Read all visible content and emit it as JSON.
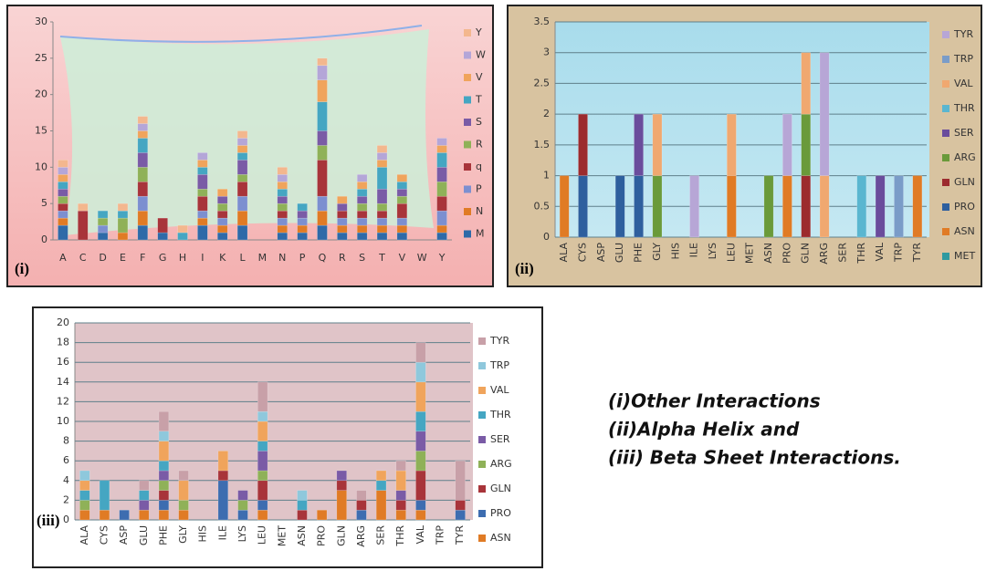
{
  "chart_data": [
    {
      "type": "bar",
      "stacked": true,
      "panel_label": "(i)",
      "legend": "right",
      "categories": [
        "A",
        "C",
        "D",
        "E",
        "F",
        "G",
        "H",
        "I",
        "K",
        "L",
        "M",
        "N",
        "P",
        "Q",
        "R",
        "S",
        "T",
        "V",
        "W",
        "Y"
      ],
      "ylim": [
        0,
        30
      ],
      "yticks": [
        0,
        5,
        10,
        15,
        20,
        25,
        30
      ],
      "grid": false,
      "series": [
        {
          "name": "M",
          "color": "#2e6aa8",
          "values": [
            2,
            0,
            1,
            0,
            2,
            1,
            0,
            2,
            1,
            2,
            0,
            1,
            1,
            2,
            1,
            1,
            1,
            1,
            0,
            1
          ]
        },
        {
          "name": "N",
          "color": "#e07b25",
          "values": [
            1,
            0,
            0,
            1,
            2,
            0,
            0,
            1,
            1,
            2,
            0,
            1,
            1,
            2,
            1,
            1,
            1,
            1,
            0,
            1
          ]
        },
        {
          "name": "P",
          "color": "#7c8fd0",
          "values": [
            1,
            0,
            1,
            0,
            2,
            0,
            0,
            1,
            1,
            2,
            0,
            1,
            1,
            2,
            1,
            1,
            1,
            1,
            0,
            2
          ]
        },
        {
          "name": "q",
          "color": "#a8343a",
          "values": [
            1,
            4,
            0,
            0,
            2,
            2,
            0,
            2,
            1,
            2,
            0,
            1,
            0,
            5,
            1,
            1,
            1,
            2,
            0,
            2
          ]
        },
        {
          "name": "R",
          "color": "#8fb158",
          "values": [
            1,
            0,
            1,
            2,
            2,
            0,
            0,
            1,
            1,
            1,
            0,
            1,
            0,
            2,
            0,
            1,
            1,
            1,
            0,
            2
          ]
        },
        {
          "name": "S",
          "color": "#7a5ba6",
          "values": [
            1,
            0,
            0,
            0,
            2,
            0,
            0,
            2,
            1,
            2,
            0,
            1,
            1,
            2,
            1,
            1,
            2,
            1,
            0,
            2
          ]
        },
        {
          "name": "T",
          "color": "#45a6c2",
          "values": [
            1,
            0,
            1,
            1,
            2,
            0,
            1,
            1,
            0,
            1,
            0,
            1,
            1,
            4,
            0,
            1,
            3,
            1,
            0,
            2
          ]
        },
        {
          "name": "V",
          "color": "#f0a45c",
          "values": [
            1,
            0,
            0,
            0,
            1,
            0,
            0,
            1,
            1,
            1,
            0,
            1,
            0,
            3,
            1,
            1,
            1,
            1,
            0,
            1
          ]
        },
        {
          "name": "W",
          "color": "#b4a6d8",
          "values": [
            1,
            0,
            0,
            0,
            1,
            0,
            0,
            1,
            0,
            1,
            0,
            1,
            0,
            2,
            0,
            1,
            1,
            0,
            0,
            1
          ]
        },
        {
          "name": "Y",
          "color": "#f3b78e",
          "values": [
            1,
            1,
            0,
            1,
            1,
            0,
            1,
            0,
            0,
            1,
            0,
            1,
            0,
            1,
            0,
            0,
            1,
            0,
            0,
            0
          ]
        }
      ]
    },
    {
      "type": "bar",
      "stacked": true,
      "panel_label": "(ii)",
      "legend": "right",
      "categories": [
        "ALA",
        "CYS",
        "ASP",
        "GLU",
        "PHE",
        "GLY",
        "HIS",
        "ILE",
        "LYS",
        "LEU",
        "MET",
        "ASN",
        "PRO",
        "GLN",
        "ARG",
        "SER",
        "THR",
        "VAL",
        "TRP",
        "TYR"
      ],
      "ylim": [
        0,
        3.5
      ],
      "yticks": [
        0,
        0.5,
        1,
        1.5,
        2,
        2.5,
        3,
        3.5
      ],
      "grid": true,
      "series": [
        {
          "name": "MET",
          "color": "#2e9aa0",
          "values": [
            0,
            0,
            0,
            0,
            0,
            0,
            0,
            0,
            0,
            0,
            0,
            0,
            0,
            0,
            0,
            0,
            0,
            0,
            0,
            0
          ]
        },
        {
          "name": "ASN",
          "color": "#e07b25",
          "values": [
            1,
            0,
            0,
            0,
            0,
            0,
            0,
            0,
            0,
            1,
            0,
            0,
            1,
            0,
            0,
            0,
            0,
            0,
            0,
            1
          ]
        },
        {
          "name": "PRO",
          "color": "#2e5f9e",
          "values": [
            0,
            1,
            0,
            1,
            1,
            0,
            0,
            0,
            0,
            0,
            0,
            0,
            0,
            0,
            0,
            0,
            0,
            0,
            0,
            0
          ]
        },
        {
          "name": "GLN",
          "color": "#9c2b2e",
          "values": [
            0,
            1,
            0,
            0,
            0,
            0,
            0,
            0,
            0,
            0,
            0,
            0,
            0,
            1,
            0,
            0,
            0,
            0,
            0,
            0
          ]
        },
        {
          "name": "ARG",
          "color": "#6a9a3a",
          "values": [
            0,
            0,
            0,
            0,
            0,
            1,
            0,
            0,
            0,
            0,
            0,
            1,
            0,
            1,
            0,
            0,
            0,
            0,
            0,
            0
          ]
        },
        {
          "name": "SER",
          "color": "#6a4c9c",
          "values": [
            0,
            0,
            0,
            0,
            1,
            0,
            0,
            0,
            0,
            0,
            0,
            0,
            0,
            0,
            0,
            0,
            0,
            1,
            0,
            0
          ]
        },
        {
          "name": "THR",
          "color": "#5ab6d0",
          "values": [
            0,
            0,
            0,
            0,
            0,
            0,
            0,
            0,
            0,
            0,
            0,
            0,
            0,
            0,
            0,
            0,
            1,
            0,
            0,
            0
          ]
        },
        {
          "name": "VAL",
          "color": "#f0a870",
          "values": [
            0,
            0,
            0,
            0,
            0,
            1,
            0,
            0,
            0,
            1,
            0,
            0,
            0,
            1,
            1,
            0,
            0,
            0,
            0,
            0
          ]
        },
        {
          "name": "TRP",
          "color": "#7a9cc8",
          "values": [
            0,
            0,
            0,
            0,
            0,
            0,
            0,
            0,
            0,
            0,
            0,
            0,
            0,
            0,
            0,
            0,
            0,
            0,
            1,
            0
          ]
        },
        {
          "name": "TYR",
          "color": "#b7a6d6",
          "values": [
            0,
            0,
            0,
            0,
            0,
            0,
            0,
            1,
            0,
            0,
            0,
            0,
            1,
            0,
            2,
            0,
            0,
            0,
            0,
            0
          ]
        }
      ]
    },
    {
      "type": "bar",
      "stacked": true,
      "panel_label": "(iii)",
      "legend": "right",
      "categories": [
        "ALA",
        "CYS",
        "ASP",
        "GLU",
        "PHE",
        "GLY",
        "HIS",
        "ILE",
        "LYS",
        "LEU",
        "MET",
        "ASN",
        "PRO",
        "GLN",
        "ARG",
        "SER",
        "THR",
        "VAL",
        "TRP",
        "TYR"
      ],
      "ylim": [
        0,
        20
      ],
      "yticks": [
        0,
        2,
        4,
        6,
        8,
        10,
        12,
        14,
        16,
        18,
        20
      ],
      "grid": true,
      "series": [
        {
          "name": "ASN",
          "color": "#e07b25",
          "values": [
            1,
            1,
            0,
            1,
            1,
            1,
            0,
            0,
            0,
            1,
            0,
            0,
            1,
            3,
            0,
            3,
            1,
            1,
            0,
            0
          ]
        },
        {
          "name": "PRO",
          "color": "#3d6db0",
          "values": [
            0,
            0,
            1,
            0,
            1,
            0,
            0,
            4,
            1,
            1,
            0,
            0,
            0,
            0,
            1,
            0,
            0,
            1,
            0,
            1
          ]
        },
        {
          "name": "GLN",
          "color": "#a8343a",
          "values": [
            0,
            0,
            0,
            0,
            1,
            0,
            0,
            1,
            0,
            2,
            0,
            1,
            0,
            1,
            1,
            0,
            1,
            3,
            0,
            1
          ]
        },
        {
          "name": "ARG",
          "color": "#8fb158",
          "values": [
            1,
            0,
            0,
            0,
            1,
            1,
            0,
            0,
            1,
            1,
            0,
            0,
            0,
            0,
            0,
            0,
            0,
            2,
            0,
            0
          ]
        },
        {
          "name": "SER",
          "color": "#7a5ba6",
          "values": [
            0,
            0,
            0,
            1,
            1,
            0,
            0,
            0,
            1,
            2,
            0,
            0,
            0,
            1,
            0,
            0,
            1,
            2,
            0,
            0
          ]
        },
        {
          "name": "THR",
          "color": "#45a6c2",
          "values": [
            1,
            3,
            0,
            1,
            1,
            0,
            0,
            0,
            0,
            1,
            0,
            1,
            0,
            0,
            0,
            1,
            0,
            2,
            0,
            0
          ]
        },
        {
          "name": "VAL",
          "color": "#f0a45c",
          "values": [
            1,
            0,
            0,
            0,
            2,
            2,
            0,
            2,
            0,
            2,
            0,
            0,
            0,
            0,
            0,
            1,
            2,
            3,
            0,
            0
          ]
        },
        {
          "name": "TRP",
          "color": "#8fc8dc",
          "values": [
            1,
            0,
            0,
            0,
            1,
            0,
            0,
            0,
            0,
            1,
            0,
            1,
            0,
            0,
            0,
            0,
            0,
            2,
            0,
            0
          ]
        },
        {
          "name": "TYR",
          "color": "#c8a0a8",
          "values": [
            0,
            0,
            0,
            1,
            2,
            1,
            0,
            0,
            0,
            3,
            0,
            0,
            0,
            0,
            1,
            0,
            1,
            2,
            0,
            4
          ]
        }
      ]
    }
  ],
  "caption": [
    "(i)Other Interactions",
    "(ii)Alpha Helix and",
    "(iii) Beta Sheet Interactions."
  ]
}
